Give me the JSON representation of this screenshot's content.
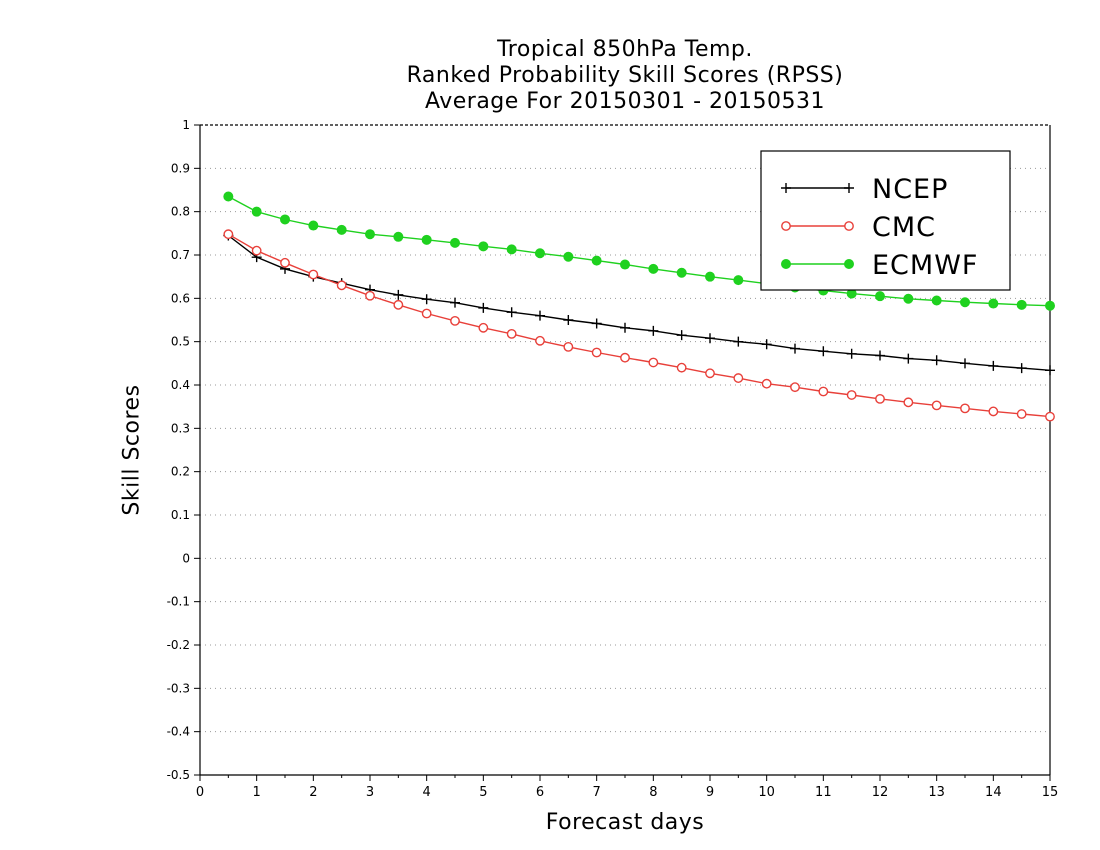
{
  "chart_data": {
    "type": "line",
    "title_lines": [
      "Tropical 850hPa Temp.",
      "Ranked Probability Skill Scores (RPSS)",
      "Average For 20150301 - 20150531"
    ],
    "xlabel": "Forecast days",
    "ylabel": "Skill Scores",
    "xlim": [
      0,
      15
    ],
    "ylim": [
      -0.5,
      1
    ],
    "x_ticks": [
      "0",
      "1",
      "2",
      "3",
      "4",
      "5",
      "6",
      "7",
      "8",
      "9",
      "10",
      "11",
      "12",
      "13",
      "14",
      "15"
    ],
    "y_ticks": [
      "-0.5",
      "-0.4",
      "-0.3",
      "-0.2",
      "-0.1",
      "0",
      "0.1",
      "0.2",
      "0.3",
      "0.4",
      "0.5",
      "0.6",
      "0.7",
      "0.8",
      "0.9",
      "1"
    ],
    "grid": true,
    "legend_position": "top-right",
    "x": [
      0.5,
      1,
      1.5,
      2,
      2.5,
      3,
      3.5,
      4,
      4.5,
      5,
      5.5,
      6,
      6.5,
      7,
      7.5,
      8,
      8.5,
      9,
      9.5,
      10,
      10.5,
      11,
      11.5,
      12,
      12.5,
      13,
      13.5,
      14,
      14.5,
      15
    ],
    "series": [
      {
        "name": "NCEP",
        "color": "#000000",
        "marker": "plus",
        "values": [
          0.745,
          0.695,
          0.668,
          0.65,
          0.635,
          0.62,
          0.608,
          0.598,
          0.59,
          0.578,
          0.568,
          0.56,
          0.55,
          0.542,
          0.532,
          0.525,
          0.515,
          0.508,
          0.5,
          0.494,
          0.484,
          0.478,
          0.472,
          0.468,
          0.461,
          0.457,
          0.45,
          0.444,
          0.439,
          0.434
        ]
      },
      {
        "name": "CMC",
        "color": "#e8403a",
        "marker": "open-circle",
        "values": [
          0.748,
          0.71,
          0.682,
          0.655,
          0.63,
          0.606,
          0.585,
          0.565,
          0.548,
          0.532,
          0.518,
          0.502,
          0.488,
          0.475,
          0.463,
          0.452,
          0.44,
          0.427,
          0.416,
          0.403,
          0.395,
          0.385,
          0.377,
          0.368,
          0.36,
          0.353,
          0.346,
          0.339,
          0.333,
          0.327
        ]
      },
      {
        "name": "ECMWF",
        "color": "#1fd11f",
        "marker": "filled-circle",
        "values": [
          0.835,
          0.8,
          0.782,
          0.768,
          0.758,
          0.748,
          0.742,
          0.735,
          0.728,
          0.72,
          0.713,
          0.704,
          0.696,
          0.687,
          0.678,
          0.668,
          0.659,
          0.65,
          0.642,
          0.634,
          0.625,
          0.618,
          0.611,
          0.605,
          0.599,
          0.595,
          0.591,
          0.588,
          0.585,
          0.583
        ]
      }
    ]
  }
}
